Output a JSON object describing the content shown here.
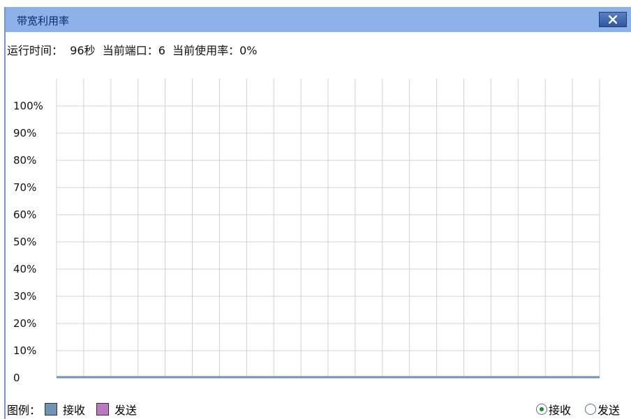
{
  "window": {
    "title": "带宽利用率",
    "close_label": "X"
  },
  "status": {
    "runtime_label": "运行时间：",
    "runtime_value": "96秒",
    "port_label": "当前端口：",
    "port_value": "6",
    "usage_label": "当前使用率：",
    "usage_value": "0%"
  },
  "legend": {
    "title": "图例：",
    "receive_label": "接收",
    "send_label": "发送",
    "receive_color": "#6f93b4",
    "send_color": "#b879c0"
  },
  "radios": {
    "receive_label": "接收",
    "send_label": "发送",
    "selected": "receive"
  },
  "chart_data": {
    "type": "line",
    "title": "",
    "xlabel": "",
    "ylabel": "",
    "ylim": [
      0,
      110
    ],
    "y_tick_labels": [
      "0",
      "10%",
      "20%",
      "30%",
      "40%",
      "50%",
      "60%",
      "70%",
      "80%",
      "90%",
      "100%"
    ],
    "y_ticks": [
      0,
      10,
      20,
      30,
      40,
      50,
      60,
      70,
      80,
      90,
      100
    ],
    "x_gridlines": 20,
    "grid": true,
    "series": [
      {
        "color": "#6f93b4",
        "values": [
          0,
          0,
          0,
          0,
          0,
          0,
          0,
          0,
          0,
          0,
          0,
          0,
          0,
          0,
          0,
          0,
          0,
          0,
          0,
          0,
          0
        ]
      }
    ]
  }
}
